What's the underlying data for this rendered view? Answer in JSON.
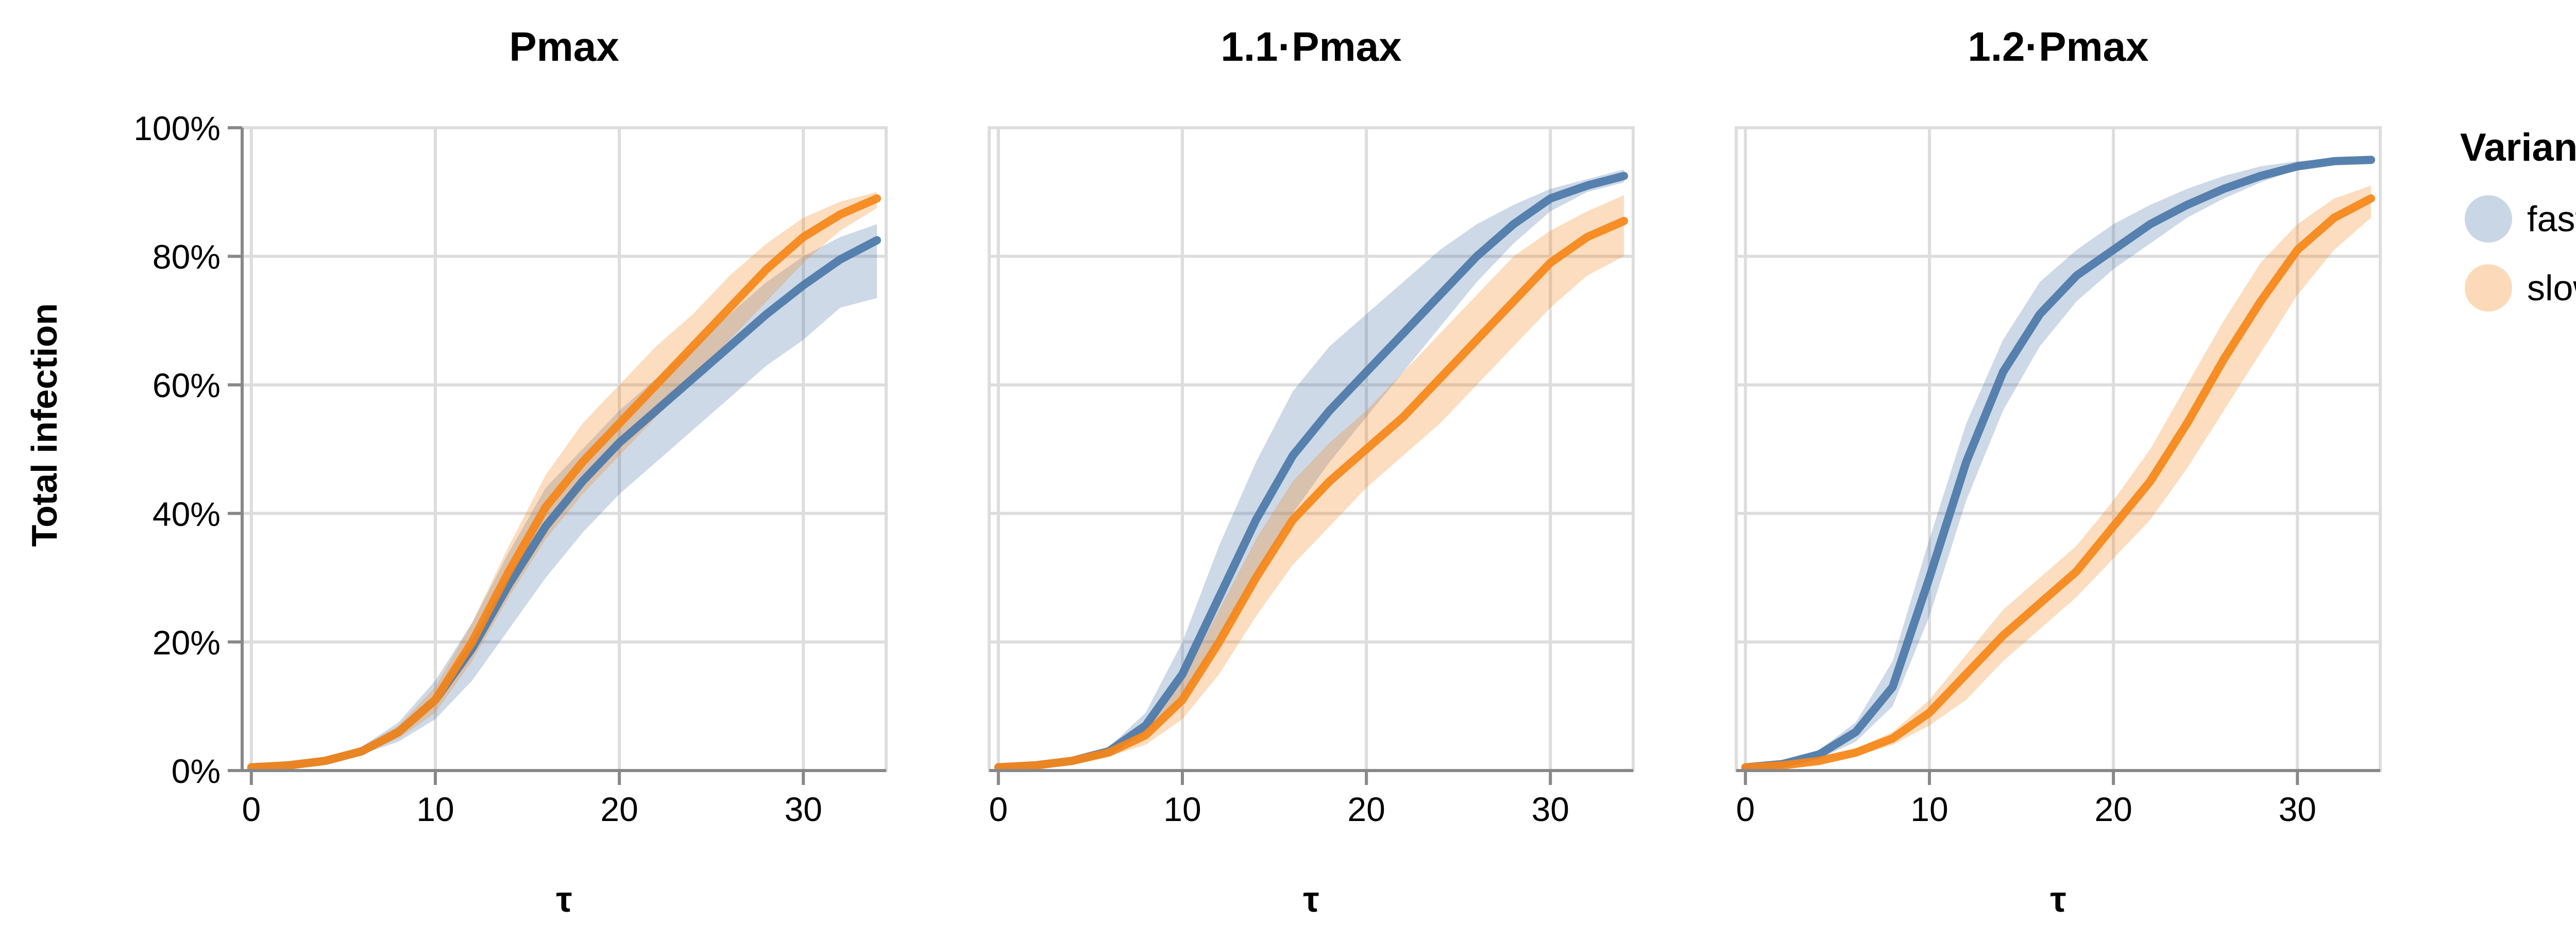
{
  "chart_data": {
    "type": "line",
    "facets": [
      {
        "title": "Pmax",
        "series": [
          {
            "name": "faster",
            "x": [
              0,
              2,
              4,
              6,
              8,
              10,
              12,
              14,
              16,
              18,
              20,
              22,
              24,
              26,
              28,
              30,
              32,
              34
            ],
            "y": [
              0.005,
              0.008,
              0.015,
              0.03,
              0.06,
              0.11,
              0.19,
              0.29,
              0.38,
              0.45,
              0.51,
              0.56,
              0.61,
              0.66,
              0.71,
              0.755,
              0.795,
              0.825
            ],
            "lo": [
              0.003,
              0.006,
              0.012,
              0.025,
              0.045,
              0.08,
              0.14,
              0.22,
              0.3,
              0.37,
              0.43,
              0.48,
              0.53,
              0.58,
              0.63,
              0.67,
              0.72,
              0.735
            ],
            "hi": [
              0.008,
              0.011,
              0.02,
              0.037,
              0.075,
              0.14,
              0.23,
              0.34,
              0.44,
              0.5,
              0.56,
              0.61,
              0.66,
              0.71,
              0.76,
              0.8,
              0.83,
              0.85
            ]
          },
          {
            "name": "slower",
            "x": [
              0,
              2,
              4,
              6,
              8,
              10,
              12,
              14,
              16,
              18,
              20,
              22,
              24,
              26,
              28,
              30,
              32,
              34
            ],
            "y": [
              0.005,
              0.008,
              0.015,
              0.03,
              0.06,
              0.11,
              0.2,
              0.31,
              0.41,
              0.48,
              0.54,
              0.6,
              0.66,
              0.72,
              0.78,
              0.83,
              0.865,
              0.89
            ],
            "lo": [
              0.003,
              0.006,
              0.012,
              0.025,
              0.05,
              0.09,
              0.17,
              0.27,
              0.36,
              0.43,
              0.49,
              0.55,
              0.61,
              0.67,
              0.73,
              0.79,
              0.84,
              0.875
            ],
            "hi": [
              0.008,
              0.011,
              0.02,
              0.036,
              0.07,
              0.13,
              0.23,
              0.35,
              0.46,
              0.54,
              0.6,
              0.66,
              0.71,
              0.77,
              0.82,
              0.86,
              0.885,
              0.9
            ]
          }
        ]
      },
      {
        "title": "1.1·Pmax",
        "series": [
          {
            "name": "faster",
            "x": [
              0,
              2,
              4,
              6,
              8,
              10,
              12,
              14,
              16,
              18,
              20,
              22,
              24,
              26,
              28,
              30,
              32,
              34
            ],
            "y": [
              0.005,
              0.008,
              0.015,
              0.03,
              0.07,
              0.15,
              0.27,
              0.39,
              0.49,
              0.56,
              0.62,
              0.68,
              0.74,
              0.8,
              0.85,
              0.89,
              0.91,
              0.925
            ],
            "lo": [
              0.003,
              0.006,
              0.012,
              0.025,
              0.055,
              0.11,
              0.2,
              0.3,
              0.4,
              0.48,
              0.55,
              0.62,
              0.69,
              0.76,
              0.82,
              0.87,
              0.9,
              0.915
            ],
            "hi": [
              0.008,
              0.011,
              0.02,
              0.036,
              0.09,
              0.2,
              0.35,
              0.48,
              0.59,
              0.66,
              0.71,
              0.76,
              0.81,
              0.85,
              0.88,
              0.905,
              0.92,
              0.935
            ]
          },
          {
            "name": "slower",
            "x": [
              0,
              2,
              4,
              6,
              8,
              10,
              12,
              14,
              16,
              18,
              20,
              22,
              24,
              26,
              28,
              30,
              32,
              34
            ],
            "y": [
              0.005,
              0.008,
              0.015,
              0.028,
              0.055,
              0.11,
              0.2,
              0.3,
              0.39,
              0.45,
              0.5,
              0.55,
              0.61,
              0.67,
              0.73,
              0.79,
              0.83,
              0.855
            ],
            "lo": [
              0.003,
              0.006,
              0.012,
              0.022,
              0.04,
              0.08,
              0.15,
              0.24,
              0.32,
              0.38,
              0.44,
              0.49,
              0.54,
              0.6,
              0.66,
              0.72,
              0.77,
              0.8
            ],
            "hi": [
              0.008,
              0.011,
              0.02,
              0.034,
              0.07,
              0.14,
              0.25,
              0.36,
              0.45,
              0.51,
              0.56,
              0.62,
              0.68,
              0.74,
              0.8,
              0.84,
              0.87,
              0.895
            ]
          }
        ]
      },
      {
        "title": "1.2·Pmax",
        "series": [
          {
            "name": "faster",
            "x": [
              0,
              2,
              4,
              6,
              8,
              10,
              12,
              14,
              16,
              18,
              20,
              22,
              24,
              26,
              28,
              30,
              32,
              34
            ],
            "y": [
              0.005,
              0.01,
              0.025,
              0.06,
              0.13,
              0.3,
              0.48,
              0.62,
              0.71,
              0.77,
              0.81,
              0.85,
              0.88,
              0.905,
              0.925,
              0.94,
              0.948,
              0.95
            ],
            "lo": [
              0.003,
              0.007,
              0.018,
              0.045,
              0.1,
              0.24,
              0.42,
              0.56,
              0.66,
              0.73,
              0.78,
              0.82,
              0.86,
              0.89,
              0.915,
              0.935,
              0.945,
              0.945
            ],
            "hi": [
              0.008,
              0.013,
              0.032,
              0.075,
              0.17,
              0.36,
              0.54,
              0.67,
              0.76,
              0.81,
              0.85,
              0.88,
              0.905,
              0.925,
              0.94,
              0.948,
              0.952,
              0.955
            ]
          },
          {
            "name": "slower",
            "x": [
              0,
              2,
              4,
              6,
              8,
              10,
              12,
              14,
              16,
              18,
              20,
              22,
              24,
              26,
              28,
              30,
              32,
              34
            ],
            "y": [
              0.005,
              0.008,
              0.015,
              0.028,
              0.05,
              0.09,
              0.15,
              0.21,
              0.26,
              0.31,
              0.38,
              0.45,
              0.54,
              0.64,
              0.73,
              0.81,
              0.86,
              0.89
            ],
            "lo": [
              0.003,
              0.006,
              0.012,
              0.022,
              0.04,
              0.07,
              0.11,
              0.17,
              0.22,
              0.27,
              0.33,
              0.39,
              0.47,
              0.56,
              0.65,
              0.74,
              0.81,
              0.86
            ],
            "hi": [
              0.008,
              0.011,
              0.02,
              0.034,
              0.06,
              0.11,
              0.18,
              0.25,
              0.3,
              0.35,
              0.42,
              0.5,
              0.6,
              0.7,
              0.79,
              0.85,
              0.89,
              0.91
            ]
          }
        ]
      }
    ],
    "xlabel": "τ",
    "ylabel": "Total infection",
    "x_ticks": [
      0,
      10,
      20,
      30
    ],
    "xlim": [
      -0.5,
      34.5
    ],
    "y_ticks": [
      0,
      0.2,
      0.4,
      0.6,
      0.8,
      1.0
    ],
    "y_tick_labels": [
      "0%",
      "20%",
      "40%",
      "60%",
      "80%",
      "100%"
    ],
    "ylim": [
      0,
      1
    ],
    "grid": true,
    "legend": {
      "title": "Variant",
      "placement": "right",
      "entries": [
        "faster",
        "slower"
      ]
    },
    "colors": {
      "faster": "#4c78a8",
      "slower": "#f58518",
      "band_faster": "#4c78a8",
      "band_slower": "#f58518"
    }
  }
}
